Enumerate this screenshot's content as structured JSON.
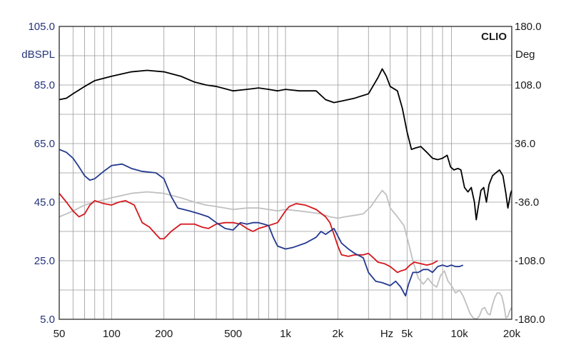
{
  "chart_data": {
    "type": "line",
    "title": "",
    "brand": "CLIO",
    "xlabel": "Hz",
    "ylabel": "dBSPL",
    "y2label": "Deg",
    "xscale": "log",
    "xlim": [
      50,
      20000
    ],
    "ylim": [
      5,
      105
    ],
    "y2lim": [
      -180,
      180
    ],
    "grid": true,
    "x_ticks": [
      {
        "value": 50,
        "label": "50"
      },
      {
        "value": 100,
        "label": "100"
      },
      {
        "value": 200,
        "label": "200"
      },
      {
        "value": 500,
        "label": "500"
      },
      {
        "value": 1000,
        "label": "1k"
      },
      {
        "value": 2000,
        "label": "2k"
      },
      {
        "value": 5000,
        "label": "5k"
      },
      {
        "value": 10000,
        "label": "10k"
      },
      {
        "value": 20000,
        "label": "20k"
      }
    ],
    "y_ticks": [
      {
        "value": 105,
        "label": "105.0"
      },
      {
        "value": 85,
        "label": "85.0"
      },
      {
        "value": 65,
        "label": "65.0"
      },
      {
        "value": 45,
        "label": "45.0"
      },
      {
        "value": 25,
        "label": "25.0"
      },
      {
        "value": 5,
        "label": "5.0"
      }
    ],
    "y2_ticks": [
      {
        "value": 180,
        "label": "180.0"
      },
      {
        "value": 108,
        "label": "108.0"
      },
      {
        "value": 36,
        "label": "36.0"
      },
      {
        "value": -36,
        "label": "-36.0"
      },
      {
        "value": -108,
        "label": "-108.0"
      },
      {
        "value": -180,
        "label": "-180.0"
      }
    ],
    "colors": {
      "frame": "#1a1a1a",
      "grid": "#9a9a9a",
      "left_axis_text": "#24337a"
    },
    "series": [
      {
        "color": "#000000",
        "points": [
          [
            50,
            80
          ],
          [
            55,
            80.5
          ],
          [
            60,
            82
          ],
          [
            70,
            84.5
          ],
          [
            80,
            86.5
          ],
          [
            100,
            88
          ],
          [
            130,
            89.5
          ],
          [
            160,
            90
          ],
          [
            200,
            89.5
          ],
          [
            250,
            88
          ],
          [
            300,
            86
          ],
          [
            350,
            85
          ],
          [
            400,
            84.5
          ],
          [
            500,
            83
          ],
          [
            600,
            83.5
          ],
          [
            700,
            84
          ],
          [
            800,
            83.5
          ],
          [
            900,
            83
          ],
          [
            1000,
            83.5
          ],
          [
            1200,
            83
          ],
          [
            1500,
            83
          ],
          [
            1700,
            80
          ],
          [
            1900,
            79
          ],
          [
            2100,
            79.5
          ],
          [
            2500,
            80.5
          ],
          [
            3000,
            82
          ],
          [
            3400,
            87.5
          ],
          [
            3600,
            90.5
          ],
          [
            3800,
            88
          ],
          [
            4000,
            84.5
          ],
          [
            4400,
            83
          ],
          [
            4700,
            77
          ],
          [
            5000,
            69
          ],
          [
            5300,
            63
          ],
          [
            5600,
            63.5
          ],
          [
            6000,
            64
          ],
          [
            6500,
            62
          ],
          [
            7000,
            60
          ],
          [
            7500,
            59.5
          ],
          [
            8000,
            60
          ],
          [
            8500,
            61
          ],
          [
            8900,
            57
          ],
          [
            9300,
            56
          ],
          [
            9800,
            56.5
          ],
          [
            10200,
            56
          ],
          [
            10700,
            50
          ],
          [
            11200,
            48.5
          ],
          [
            11700,
            50
          ],
          [
            12200,
            45
          ],
          [
            12500,
            39
          ],
          [
            12800,
            43
          ],
          [
            13300,
            49
          ],
          [
            13800,
            50
          ],
          [
            14300,
            45
          ],
          [
            14800,
            51
          ],
          [
            15500,
            54
          ],
          [
            16200,
            55
          ],
          [
            17000,
            56
          ],
          [
            17800,
            54
          ],
          [
            18500,
            48
          ],
          [
            19000,
            43
          ],
          [
            19700,
            48
          ],
          [
            20000,
            49
          ]
        ]
      },
      {
        "color": "#24398f",
        "points": [
          [
            50,
            63
          ],
          [
            55,
            62
          ],
          [
            60,
            60
          ],
          [
            65,
            57
          ],
          [
            70,
            54
          ],
          [
            75,
            52.5
          ],
          [
            80,
            53
          ],
          [
            90,
            55.5
          ],
          [
            100,
            57.5
          ],
          [
            115,
            58
          ],
          [
            130,
            56.5
          ],
          [
            150,
            55.5
          ],
          [
            180,
            55
          ],
          [
            200,
            53
          ],
          [
            220,
            47
          ],
          [
            240,
            43
          ],
          [
            280,
            42
          ],
          [
            320,
            41
          ],
          [
            360,
            40
          ],
          [
            400,
            38
          ],
          [
            450,
            36
          ],
          [
            500,
            35.5
          ],
          [
            550,
            38
          ],
          [
            600,
            37.5
          ],
          [
            650,
            38
          ],
          [
            700,
            38
          ],
          [
            750,
            37.5
          ],
          [
            800,
            37
          ],
          [
            850,
            33
          ],
          [
            900,
            30
          ],
          [
            1000,
            29
          ],
          [
            1100,
            29.5
          ],
          [
            1300,
            31
          ],
          [
            1500,
            33
          ],
          [
            1600,
            35
          ],
          [
            1700,
            34
          ],
          [
            1900,
            36
          ],
          [
            2100,
            31
          ],
          [
            2300,
            29
          ],
          [
            2500,
            27.5
          ],
          [
            2800,
            26
          ],
          [
            3000,
            21
          ],
          [
            3300,
            18
          ],
          [
            3600,
            17.5
          ],
          [
            4000,
            16.5
          ],
          [
            4300,
            18
          ],
          [
            4600,
            16
          ],
          [
            4900,
            13
          ],
          [
            5100,
            17
          ],
          [
            5400,
            21
          ],
          [
            5800,
            21
          ],
          [
            6200,
            22
          ],
          [
            6600,
            22
          ],
          [
            7000,
            21
          ],
          [
            7500,
            23
          ],
          [
            8000,
            23.5
          ],
          [
            8500,
            23
          ],
          [
            9000,
            23.5
          ],
          [
            9500,
            23
          ],
          [
            10000,
            23
          ],
          [
            10500,
            23.5
          ]
        ]
      },
      {
        "color": "#d4161c",
        "points": [
          [
            50,
            48
          ],
          [
            55,
            45
          ],
          [
            60,
            42
          ],
          [
            65,
            40
          ],
          [
            70,
            41
          ],
          [
            75,
            44
          ],
          [
            80,
            45.5
          ],
          [
            90,
            44.5
          ],
          [
            100,
            44
          ],
          [
            110,
            45
          ],
          [
            120,
            45.5
          ],
          [
            135,
            44
          ],
          [
            150,
            38
          ],
          [
            165,
            36.5
          ],
          [
            180,
            34
          ],
          [
            190,
            32.5
          ],
          [
            200,
            32.5
          ],
          [
            220,
            35
          ],
          [
            250,
            37.5
          ],
          [
            300,
            37.5
          ],
          [
            330,
            36.5
          ],
          [
            360,
            36
          ],
          [
            400,
            37.5
          ],
          [
            450,
            38
          ],
          [
            500,
            38
          ],
          [
            550,
            37.5
          ],
          [
            600,
            36
          ],
          [
            650,
            35
          ],
          [
            700,
            36
          ],
          [
            800,
            37
          ],
          [
            900,
            38
          ],
          [
            1000,
            42
          ],
          [
            1050,
            43.5
          ],
          [
            1150,
            44.5
          ],
          [
            1300,
            44
          ],
          [
            1500,
            42.5
          ],
          [
            1700,
            40
          ],
          [
            1800,
            38
          ],
          [
            1900,
            34
          ],
          [
            2000,
            30
          ],
          [
            2100,
            27
          ],
          [
            2300,
            26.5
          ],
          [
            2500,
            27
          ],
          [
            2800,
            27
          ],
          [
            3000,
            27.5
          ],
          [
            3200,
            26
          ],
          [
            3400,
            24.5
          ],
          [
            3700,
            24
          ],
          [
            4000,
            23
          ],
          [
            4200,
            22
          ],
          [
            4400,
            21
          ],
          [
            4600,
            21.5
          ],
          [
            4900,
            22
          ],
          [
            5200,
            23.5
          ],
          [
            5500,
            24.5
          ],
          [
            6000,
            24
          ],
          [
            6500,
            23.5
          ],
          [
            7000,
            24
          ],
          [
            7500,
            25
          ]
        ]
      },
      {
        "color": "#c0c0c0",
        "points": [
          [
            50,
            40
          ],
          [
            55,
            41
          ],
          [
            60,
            42
          ],
          [
            70,
            44
          ],
          [
            80,
            45
          ],
          [
            100,
            46.5
          ],
          [
            130,
            48
          ],
          [
            160,
            48.5
          ],
          [
            200,
            48
          ],
          [
            250,
            46.5
          ],
          [
            300,
            45
          ],
          [
            350,
            44
          ],
          [
            400,
            43.5
          ],
          [
            500,
            42.5
          ],
          [
            600,
            43
          ],
          [
            700,
            43
          ],
          [
            800,
            42.5
          ],
          [
            900,
            42
          ],
          [
            1000,
            42.5
          ],
          [
            1200,
            42
          ],
          [
            1400,
            41.5
          ],
          [
            1600,
            41
          ],
          [
            1800,
            40
          ],
          [
            2000,
            39.5
          ],
          [
            2200,
            40
          ],
          [
            2500,
            40.5
          ],
          [
            2800,
            41
          ],
          [
            3100,
            43.5
          ],
          [
            3400,
            47
          ],
          [
            3600,
            49
          ],
          [
            3800,
            47.5
          ],
          [
            4000,
            43
          ],
          [
            4400,
            40
          ],
          [
            4800,
            37
          ],
          [
            5100,
            31
          ],
          [
            5400,
            25
          ],
          [
            5800,
            19
          ],
          [
            6200,
            17
          ],
          [
            6600,
            19
          ],
          [
            7000,
            17
          ],
          [
            7400,
            16
          ],
          [
            7800,
            20
          ],
          [
            8200,
            21.5
          ],
          [
            8600,
            18
          ],
          [
            9000,
            16.5
          ],
          [
            9500,
            14
          ],
          [
            10000,
            15
          ],
          [
            10500,
            13
          ],
          [
            11000,
            10
          ],
          [
            11500,
            7
          ],
          [
            12000,
            5.5
          ],
          [
            12500,
            5
          ],
          [
            13000,
            6
          ],
          [
            13500,
            8.5
          ],
          [
            14000,
            9
          ],
          [
            14500,
            7
          ],
          [
            15000,
            6.5
          ],
          [
            15500,
            10
          ],
          [
            16000,
            12.5
          ],
          [
            16500,
            14
          ],
          [
            17000,
            14
          ],
          [
            17500,
            13
          ],
          [
            18000,
            10
          ],
          [
            18500,
            5.5
          ],
          [
            19000,
            6
          ],
          [
            19500,
            8
          ],
          [
            20000,
            9
          ]
        ]
      }
    ]
  }
}
